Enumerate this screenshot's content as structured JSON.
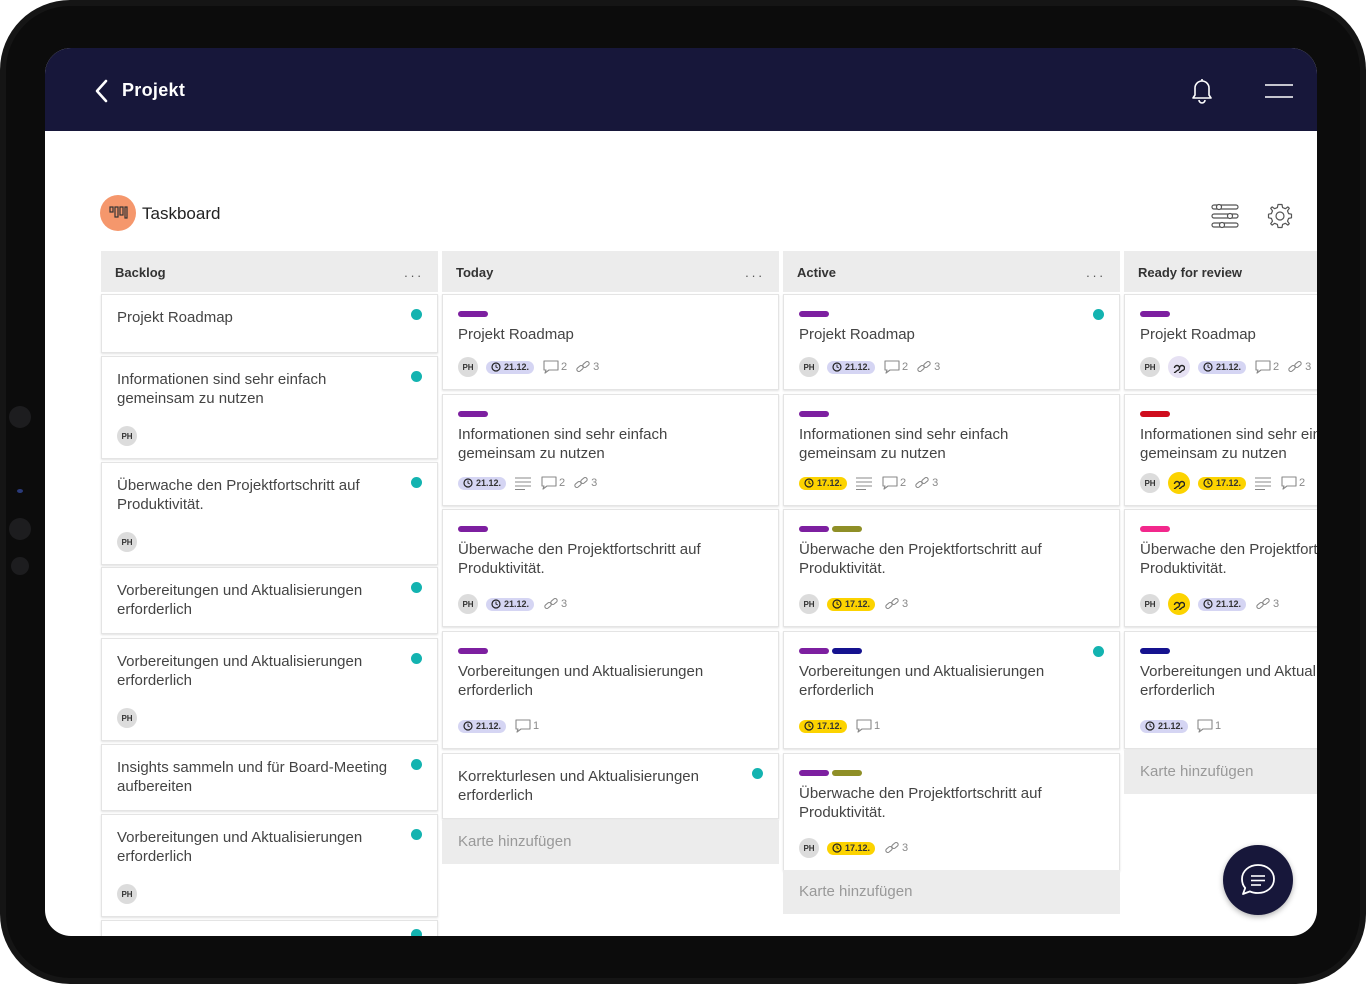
{
  "header": {
    "title": "Projekt"
  },
  "board": {
    "title": "Taskboard"
  },
  "colors": {
    "purple": "#7d1fa0",
    "olive": "#8f8f27",
    "navy": "#15128f",
    "red": "#cf0d1d",
    "pink": "#f2288c",
    "teal": "#13b3b0",
    "date_blue": "#d5d5f3",
    "date_yellow": "#fcd300",
    "topbar": "#17173a"
  },
  "columns": [
    {
      "title": "Backlog",
      "more": "...",
      "cards": [
        {
          "title": "Projekt Roadmap",
          "dot": true
        },
        {
          "title": "Informationen sind sehr einfach gemeinsam zu nutzen",
          "dot": true,
          "avatar": "PH"
        },
        {
          "title": "Überwache den Projektfortschritt auf Produktivität.",
          "dot": true,
          "avatar": "PH"
        },
        {
          "title": "Vorbereitungen und Aktualisierungen erforderlich",
          "dot": true
        },
        {
          "title": "Vorbereitungen und Aktualisierungen erforderlich",
          "dot": true,
          "avatar": "PH"
        },
        {
          "title": "Insights sammeln und für Board-Meeting aufbereiten",
          "dot": true
        },
        {
          "title": "Vorbereitungen und Aktualisierungen erforderlich",
          "dot": true,
          "avatar": "PH"
        }
      ]
    },
    {
      "title": "Today",
      "more": "...",
      "add_label": "Karte hinzufügen",
      "cards": [
        {
          "title": "Projekt Roadmap",
          "labels": [
            "purple"
          ],
          "avatar": "PH",
          "date": "21.12.",
          "date_color": "blue",
          "comments": "2",
          "attachments": "3"
        },
        {
          "title": "Informationen sind sehr einfach gemeinsam zu nutzen",
          "labels": [
            "purple"
          ],
          "date": "21.12.",
          "date_color": "blue",
          "description": true,
          "comments": "2",
          "attachments": "3"
        },
        {
          "title": "Überwache den Projektfortschritt auf Produktivität.",
          "labels": [
            "purple"
          ],
          "avatar": "PH",
          "date": "21.12.",
          "date_color": "blue",
          "attachments": "3"
        },
        {
          "title": "Vorbereitungen und Aktualisierungen erforderlich",
          "labels": [
            "purple"
          ],
          "date": "21.12.",
          "date_color": "blue",
          "comments": "1"
        },
        {
          "title": "Korrekturlesen und Aktualisierungen erforderlich",
          "dot": true
        }
      ]
    },
    {
      "title": "Active",
      "more": "...",
      "add_label": "Karte hinzufügen",
      "cards": [
        {
          "title": "Projekt Roadmap",
          "labels": [
            "purple"
          ],
          "dot": true,
          "avatar": "PH",
          "date": "21.12.",
          "date_color": "blue",
          "comments": "2",
          "attachments": "3"
        },
        {
          "title": "Informationen sind sehr einfach gemeinsam zu nutzen",
          "labels": [
            "purple"
          ],
          "date": "17.12.",
          "date_color": "yellow",
          "description": true,
          "comments": "2",
          "attachments": "3"
        },
        {
          "title": "Überwache den Projektfortschritt auf Produktivität.",
          "labels": [
            "purple",
            "olive"
          ],
          "avatar": "PH",
          "date": "17.12.",
          "date_color": "yellow",
          "attachments": "3"
        },
        {
          "title": "Vorbereitungen und Aktualisierungen erforderlich",
          "labels": [
            "purple",
            "navy"
          ],
          "dot": true,
          "date": "17.12.",
          "date_color": "yellow",
          "comments": "1"
        },
        {
          "title": "Überwache den Projektfortschritt auf Produktivität.",
          "labels": [
            "purple",
            "olive"
          ],
          "avatar": "PH",
          "date": "17.12.",
          "date_color": "yellow",
          "attachments": "3"
        }
      ]
    },
    {
      "title": "Ready for review",
      "add_label": "Karte hinzufügen",
      "cards": [
        {
          "title": "Projekt Roadmap",
          "labels": [
            "purple"
          ],
          "avatar": "PH",
          "quote": "blue",
          "date": "21.12.",
          "date_color": "blue",
          "comments": "2",
          "attachments": "3"
        },
        {
          "title": "Informationen sind sehr einfach gemeinsam zu nutzen",
          "labels": [
            "red"
          ],
          "avatar": "PH",
          "quote": "yellow",
          "date": "17.12.",
          "date_color": "yellow",
          "description": true,
          "comments": "2"
        },
        {
          "title": "Überwache den Projektfortschritt auf Produktivität.",
          "labels": [
            "pink"
          ],
          "avatar": "PH",
          "quote": "yellow",
          "date": "21.12.",
          "date_color": "blue",
          "attachments": "3"
        },
        {
          "title": "Vorbereitungen und Aktualisierungen erforderlich",
          "labels": [
            "navy"
          ],
          "date": "21.12.",
          "date_color": "blue",
          "comments": "1"
        }
      ]
    }
  ]
}
